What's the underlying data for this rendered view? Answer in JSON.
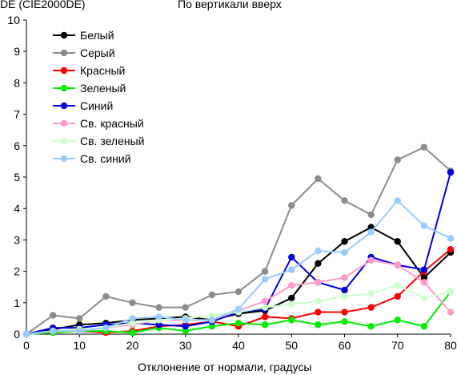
{
  "chart_data": {
    "type": "line",
    "title": "По вертикали вверх",
    "ylabel": "DE (CIE2000DE)",
    "xlabel": "Отклонение от нормали, градусы",
    "xlim": [
      0,
      80
    ],
    "ylim": [
      0,
      10
    ],
    "xticks": [
      0,
      10,
      20,
      30,
      40,
      50,
      60,
      70,
      80
    ],
    "yticks": [
      0,
      1,
      2,
      3,
      4,
      5,
      6,
      7,
      8,
      9,
      10
    ],
    "grid": false,
    "legend_position": "top-left",
    "x": [
      0,
      5,
      10,
      15,
      20,
      25,
      30,
      35,
      40,
      45,
      50,
      55,
      60,
      65,
      70,
      75,
      80
    ],
    "series": [
      {
        "name": "Белый",
        "color": "#000000",
        "values": [
          0,
          0.15,
          0.3,
          0.35,
          0.45,
          0.5,
          0.55,
          0.45,
          0.65,
          0.75,
          1.15,
          2.25,
          2.95,
          3.4,
          2.95,
          1.8,
          2.6
        ]
      },
      {
        "name": "Серый",
        "color": "#8c8c8c",
        "values": [
          0,
          0.6,
          0.5,
          1.2,
          1.0,
          0.85,
          0.85,
          1.25,
          1.35,
          2.0,
          4.1,
          4.95,
          4.25,
          3.8,
          5.55,
          5.95,
          5.2
        ]
      },
      {
        "name": "Красный",
        "color": "#ff0000",
        "values": [
          0,
          0.05,
          0.1,
          0.05,
          0.1,
          0.25,
          0.3,
          0.4,
          0.25,
          0.55,
          0.5,
          0.7,
          0.7,
          0.85,
          1.2,
          2.0,
          2.7
        ]
      },
      {
        "name": "Зеленый",
        "color": "#00ee00",
        "values": [
          0,
          0.05,
          0.1,
          0.1,
          0.05,
          0.2,
          0.1,
          0.25,
          0.35,
          0.3,
          0.45,
          0.3,
          0.4,
          0.25,
          0.45,
          0.25,
          1.35
        ]
      },
      {
        "name": "Синий",
        "color": "#0000e0",
        "values": [
          0,
          0.2,
          0.2,
          0.3,
          0.35,
          0.3,
          0.25,
          0.4,
          0.7,
          0.8,
          2.45,
          1.65,
          1.4,
          2.45,
          2.2,
          2.05,
          5.15
        ]
      },
      {
        "name": "Св. красный",
        "color": "#ff99cc",
        "values": [
          0,
          0.1,
          0.15,
          0.2,
          0.3,
          0.45,
          0.45,
          0.45,
          0.75,
          1.05,
          1.55,
          1.65,
          1.8,
          2.35,
          2.2,
          1.65,
          0.7
        ]
      },
      {
        "name": "Св. зеленый",
        "color": "#ccffcc",
        "values": [
          0,
          0.1,
          0.15,
          0.2,
          0.35,
          0.45,
          0.5,
          0.6,
          0.7,
          0.85,
          0.95,
          1.05,
          1.2,
          1.3,
          1.55,
          1.15,
          1.35
        ]
      },
      {
        "name": "Св. синий",
        "color": "#99ccff",
        "values": [
          0,
          0.1,
          0.1,
          0.2,
          0.5,
          0.55,
          0.45,
          0.45,
          0.8,
          1.75,
          2.05,
          2.65,
          2.6,
          3.25,
          4.25,
          3.45,
          3.05
        ]
      }
    ]
  }
}
